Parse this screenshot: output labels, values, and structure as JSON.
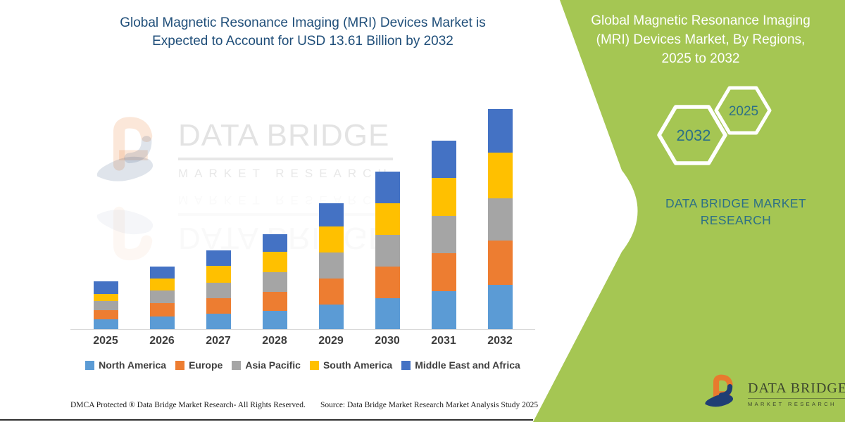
{
  "header": {
    "title_line1": "Global Magnetic Resonance Imaging (MRI) Devices Market is",
    "title_line2": "Expected to Account for USD 13.61 Billion by 2032",
    "title_color": "#1f4e79"
  },
  "chart_data": {
    "type": "bar",
    "stacked": true,
    "title": "Global Magnetic Resonance Imaging (MRI) Devices Market, By Regions, 2025 to 2032",
    "unit": "USD Billion",
    "values_estimated": true,
    "headline_value_2032": "USD 13.61 Billion",
    "categories": [
      "2025",
      "2026",
      "2027",
      "2028",
      "2029",
      "2030",
      "2031",
      "2032"
    ],
    "series": [
      {
        "name": "North America",
        "color": "#5B9BD5",
        "values": [
          0.61,
          0.78,
          0.96,
          1.13,
          1.52,
          1.91,
          2.35,
          2.74
        ]
      },
      {
        "name": "Europe",
        "color": "#ED7D31",
        "values": [
          0.57,
          0.83,
          0.96,
          1.17,
          1.61,
          1.96,
          2.35,
          2.74
        ]
      },
      {
        "name": "Asia Pacific",
        "color": "#A5A5A5",
        "values": [
          0.57,
          0.78,
          0.96,
          1.22,
          1.61,
          1.96,
          2.3,
          2.61
        ]
      },
      {
        "name": "South America",
        "color": "#FFC000",
        "values": [
          0.43,
          0.74,
          1.04,
          1.26,
          1.61,
          1.96,
          2.35,
          2.83
        ]
      },
      {
        "name": "Middle East and Africa",
        "color": "#4472C4",
        "values": [
          0.78,
          0.74,
          0.96,
          1.09,
          1.43,
          1.96,
          2.3,
          2.69
        ]
      }
    ],
    "totals": [
      2.96,
      3.87,
      4.88,
      5.87,
      7.78,
      9.75,
      11.65,
      13.61
    ],
    "ylim": [
      0,
      14
    ],
    "grid": false,
    "y_axis_shown": false,
    "legend_position": "bottom",
    "xlabel": "",
    "ylabel": ""
  },
  "watermark": {
    "brand": "DATA BRIDGE",
    "sub": "MARKET RESEARCH"
  },
  "footer": {
    "dmca": "DMCA Protected ® Data Bridge Market Research- All Rights Reserved.",
    "source": "Source: Data Bridge Market Research Market Analysis Study 2025"
  },
  "panel": {
    "bg_color": "#a5c653",
    "text_teal": "#2d7086",
    "title_line1": "Global Magnetic Resonance Imaging",
    "title_line2": "(MRI) Devices Market, By Regions,",
    "title_line3": "2025 to 2032",
    "hex_large_year": "2032",
    "hex_small_year": "2025",
    "brand_line1": "DATA BRIDGE MARKET",
    "brand_line2": "RESEARCH",
    "logo": {
      "name": "DATA BRIDGE",
      "sub": "MARKET RESEARCH",
      "orange": "#e87a2e",
      "navy": "#1f3e74"
    }
  }
}
